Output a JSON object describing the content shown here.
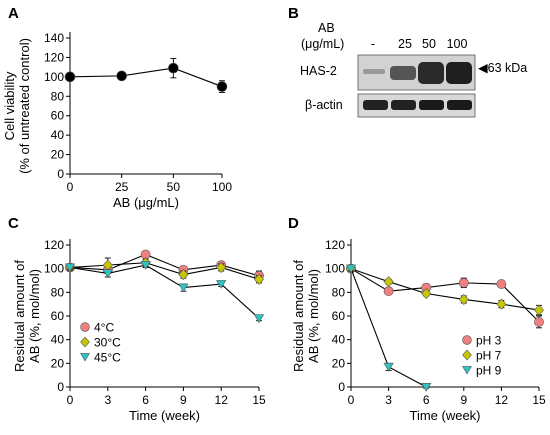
{
  "panels": {
    "A": "A",
    "B": "B",
    "C": "C",
    "D": "D"
  },
  "blot": {
    "ab_header": "AB",
    "unit_header": "(μg/mL)",
    "lanes": [
      "-",
      "25",
      "50",
      "100"
    ],
    "row_labels": [
      "HAS-2",
      "β-actin"
    ],
    "marker": "◀63 kDa"
  },
  "chart_data": [
    {
      "id": "A",
      "type": "line",
      "x": [
        "0",
        "25",
        "50",
        "100"
      ],
      "series": [
        {
          "values": [
            100,
            101,
            109,
            90
          ],
          "errors": [
            3,
            3,
            10,
            6
          ],
          "color": "#000000",
          "marker": "circle"
        }
      ],
      "xlabel": "AB (μg/mL)",
      "ylabel": [
        "Cell viability",
        "(% of untreated control)"
      ],
      "ylim": [
        0,
        140
      ],
      "yticks": [
        0,
        20,
        40,
        60,
        80,
        100,
        120,
        140
      ]
    },
    {
      "id": "C",
      "type": "line",
      "x": [
        0,
        3,
        6,
        9,
        12,
        15
      ],
      "series": [
        {
          "name": "4°C",
          "values": [
            101,
            99,
            112,
            99,
            103,
            94
          ],
          "errors": [
            2,
            3,
            2,
            3,
            2,
            4
          ],
          "color": "#f08080",
          "marker": "circle"
        },
        {
          "name": "30°C",
          "values": [
            101,
            103,
            105,
            95,
            101,
            91
          ],
          "errors": [
            2,
            6,
            3,
            3,
            3,
            3
          ],
          "color": "#c8c800",
          "marker": "diamond"
        },
        {
          "name": "45°C",
          "values": [
            101,
            96,
            103,
            84,
            87,
            58
          ],
          "errors": [
            2,
            3,
            2,
            3,
            2,
            2
          ],
          "color": "#2ec4c4",
          "marker": "triangle-down"
        }
      ],
      "xlabel": "Time (week)",
      "ylabel": [
        "Residual amount of",
        "AB (%, mol/mol)"
      ],
      "ylim": [
        0,
        120
      ],
      "yticks": [
        0,
        20,
        40,
        60,
        80,
        100,
        120
      ],
      "xticks": [
        0,
        3,
        6,
        9,
        12,
        15
      ],
      "legend": "bottom-left"
    },
    {
      "id": "D",
      "type": "line",
      "x": [
        0,
        3,
        6,
        9,
        12,
        15
      ],
      "series": [
        {
          "name": "pH 3",
          "values": [
            100,
            81,
            84,
            88,
            87,
            55
          ],
          "errors": [
            2,
            2,
            3,
            4,
            2,
            5
          ],
          "color": "#f08080",
          "marker": "circle"
        },
        {
          "name": "pH 7",
          "values": [
            100,
            89,
            79,
            74,
            70,
            65
          ],
          "errors": [
            2,
            2,
            2,
            3,
            3,
            4
          ],
          "color": "#c8c800",
          "marker": "diamond"
        },
        {
          "name": "pH 9",
          "values": [
            100,
            17,
            0,
            null,
            null,
            null
          ],
          "errors": [
            2,
            3,
            1,
            null,
            null,
            null
          ],
          "color": "#2ec4c4",
          "marker": "triangle-down"
        }
      ],
      "xlabel": "Time (week)",
      "ylabel": [
        "Residual amount of",
        "AB (%, mol/mol)"
      ],
      "ylim": [
        0,
        120
      ],
      "yticks": [
        0,
        20,
        40,
        60,
        80,
        100,
        120
      ],
      "xticks": [
        0,
        3,
        6,
        9,
        12,
        15
      ],
      "legend": "bottom-right"
    }
  ]
}
